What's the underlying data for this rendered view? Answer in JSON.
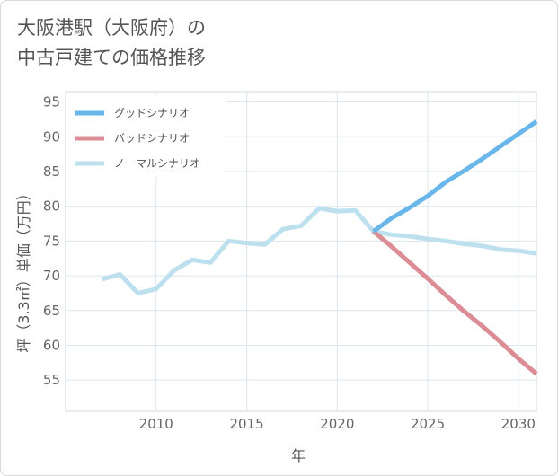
{
  "page": {
    "title_line1": "大阪港駅（大阪府）の",
    "title_line2": "中古戸建ての価格推移"
  },
  "chart_data": {
    "type": "line",
    "title": "大阪港駅（大阪府）の中古戸建ての価格推移",
    "xlabel": "年",
    "ylabel": "坪（3.3㎡）単価（万円）",
    "xlim": [
      2005,
      2031
    ],
    "ylim": [
      50.5,
      96.5
    ],
    "xticks": [
      2010,
      2015,
      2020,
      2025,
      2030
    ],
    "yticks": [
      55,
      60,
      65,
      70,
      75,
      80,
      85,
      90,
      95
    ],
    "grid": true,
    "legend_position": "top-left",
    "series": [
      {
        "name": "グッドシナリオ",
        "color": "#69b6ea",
        "x": [
          2022,
          2023,
          2024,
          2025,
          2026,
          2027,
          2028,
          2029,
          2030,
          2031
        ],
        "values": [
          76.4,
          78.3,
          79.8,
          81.5,
          83.5,
          85.1,
          86.8,
          88.6,
          90.4,
          92.2
        ]
      },
      {
        "name": "バッドシナリオ",
        "color": "#dc8c94",
        "x": [
          2022,
          2023,
          2024,
          2025,
          2026,
          2027,
          2028,
          2029,
          2030,
          2031
        ],
        "values": [
          76.4,
          74.2,
          71.9,
          69.6,
          67.2,
          64.9,
          62.8,
          60.5,
          58.1,
          55.9
        ]
      },
      {
        "name": "ノーマルシナリオ",
        "color": "#bde0ee",
        "x": [
          2007,
          2008,
          2009,
          2010,
          2011,
          2012,
          2013,
          2014,
          2015,
          2016,
          2017,
          2018,
          2019,
          2020,
          2021,
          2022,
          2023,
          2024,
          2025,
          2026,
          2027,
          2028,
          2029,
          2030,
          2031
        ],
        "values": [
          69.5,
          70.2,
          67.5,
          68.1,
          70.8,
          72.3,
          71.9,
          75.0,
          74.7,
          74.5,
          76.7,
          77.2,
          79.7,
          79.3,
          79.4,
          76.4,
          75.9,
          75.7,
          75.3,
          75.0,
          74.6,
          74.3,
          73.8,
          73.6,
          73.2
        ]
      }
    ]
  }
}
